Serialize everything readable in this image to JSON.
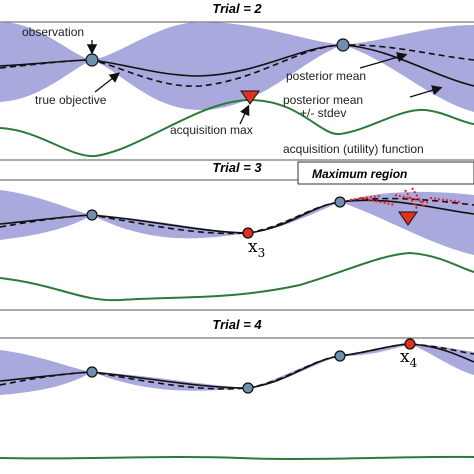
{
  "panels": [
    {
      "title": "Trial = 2",
      "labels": {
        "observation": "observation",
        "true_objective": "true objective",
        "posterior_mean": "posterior mean",
        "stdev_line1": "posterior mean",
        "stdev_line2": "+/- stdev",
        "acquisition_max": "acquisition max",
        "acquisition_function": "acquisition (utility) function"
      }
    },
    {
      "title": "Trial = 3",
      "region": "Maximum region",
      "point": {
        "label": "x",
        "subscript": "3"
      }
    },
    {
      "title": "Trial = 4",
      "point": {
        "label": "x",
        "subscript": "4"
      }
    }
  ]
}
